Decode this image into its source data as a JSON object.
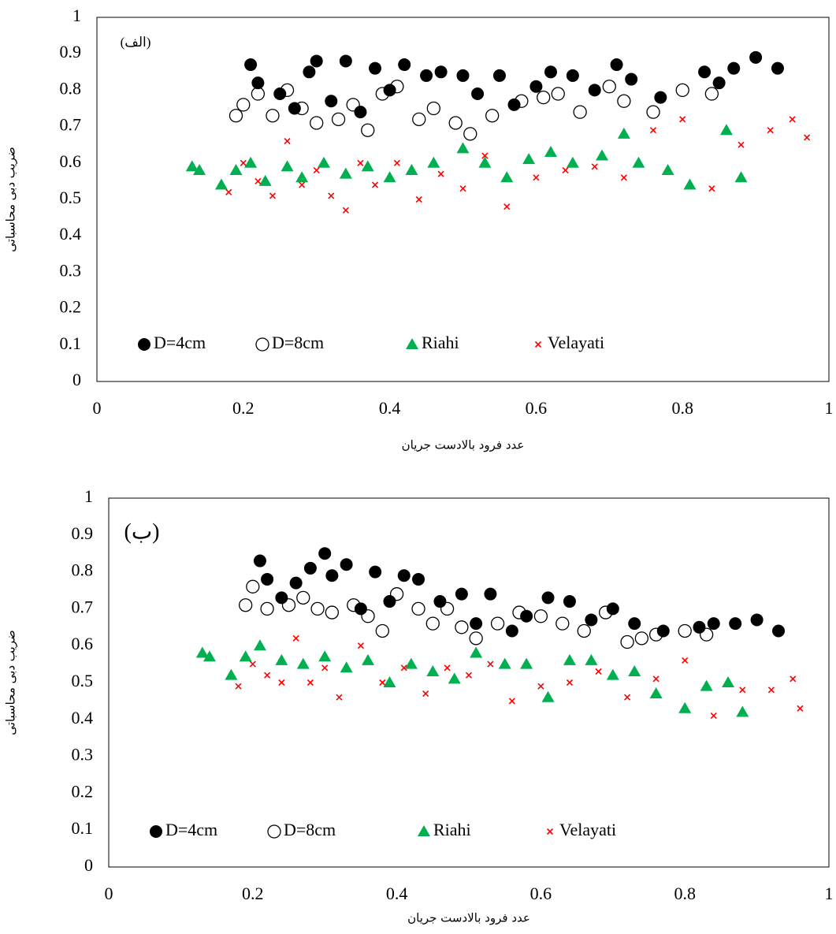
{
  "chart_data": [
    {
      "type": "scatter",
      "annotation": "(الف)",
      "xlabel": "عدد فرود بالادست جریان",
      "ylabel": "ضریب دبی محاسباتی",
      "xlim": [
        0,
        1
      ],
      "ylim": [
        0,
        1
      ],
      "xticks": [
        0,
        0.2,
        0.4,
        0.6,
        0.8,
        1
      ],
      "yticks": [
        0,
        0.1,
        0.2,
        0.3,
        0.4,
        0.5,
        0.6,
        0.7,
        0.8,
        0.9,
        1
      ],
      "series": [
        {
          "name": "D=4cm",
          "color": "#000000",
          "marker": "circle",
          "x": [
            0.21,
            0.22,
            0.25,
            0.27,
            0.29,
            0.3,
            0.32,
            0.34,
            0.36,
            0.38,
            0.4,
            0.42,
            0.45,
            0.47,
            0.5,
            0.52,
            0.55,
            0.57,
            0.6,
            0.62,
            0.65,
            0.68,
            0.71,
            0.73,
            0.77,
            0.83,
            0.85,
            0.87,
            0.9,
            0.93
          ],
          "y": [
            0.87,
            0.82,
            0.79,
            0.75,
            0.85,
            0.88,
            0.77,
            0.88,
            0.74,
            0.86,
            0.8,
            0.87,
            0.84,
            0.85,
            0.84,
            0.79,
            0.84,
            0.76,
            0.81,
            0.85,
            0.84,
            0.8,
            0.87,
            0.83,
            0.78,
            0.85,
            0.82,
            0.86,
            0.89,
            0.86
          ]
        },
        {
          "name": "D=8cm",
          "color": "#000000",
          "marker": "open-circle",
          "x": [
            0.19,
            0.2,
            0.22,
            0.24,
            0.26,
            0.28,
            0.3,
            0.33,
            0.35,
            0.37,
            0.39,
            0.41,
            0.44,
            0.46,
            0.49,
            0.51,
            0.54,
            0.58,
            0.61,
            0.63,
            0.66,
            0.7,
            0.72,
            0.76,
            0.8,
            0.84
          ],
          "y": [
            0.73,
            0.76,
            0.79,
            0.73,
            0.8,
            0.75,
            0.71,
            0.72,
            0.76,
            0.69,
            0.79,
            0.81,
            0.72,
            0.75,
            0.71,
            0.68,
            0.73,
            0.77,
            0.78,
            0.79,
            0.74,
            0.81,
            0.77,
            0.74,
            0.8,
            0.79
          ]
        },
        {
          "name": "Riahi",
          "color": "#00b050",
          "marker": "triangle",
          "x": [
            0.13,
            0.14,
            0.17,
            0.19,
            0.21,
            0.23,
            0.26,
            0.28,
            0.31,
            0.34,
            0.37,
            0.4,
            0.43,
            0.46,
            0.5,
            0.53,
            0.56,
            0.59,
            0.62,
            0.65,
            0.69,
            0.72,
            0.74,
            0.78,
            0.81,
            0.86,
            0.88
          ],
          "y": [
            0.59,
            0.58,
            0.54,
            0.58,
            0.6,
            0.55,
            0.59,
            0.56,
            0.6,
            0.57,
            0.59,
            0.56,
            0.58,
            0.6,
            0.64,
            0.6,
            0.56,
            0.61,
            0.63,
            0.6,
            0.62,
            0.68,
            0.6,
            0.58,
            0.54,
            0.69,
            0.56
          ]
        },
        {
          "name": "Velayati",
          "color": "#ff0000",
          "marker": "x",
          "x": [
            0.18,
            0.2,
            0.22,
            0.24,
            0.26,
            0.28,
            0.3,
            0.32,
            0.34,
            0.36,
            0.38,
            0.41,
            0.44,
            0.47,
            0.5,
            0.53,
            0.56,
            0.6,
            0.64,
            0.68,
            0.72,
            0.76,
            0.8,
            0.84,
            0.88,
            0.92,
            0.95,
            0.97
          ],
          "y": [
            0.52,
            0.6,
            0.55,
            0.51,
            0.66,
            0.54,
            0.58,
            0.51,
            0.47,
            0.6,
            0.54,
            0.6,
            0.5,
            0.57,
            0.53,
            0.62,
            0.48,
            0.56,
            0.58,
            0.59,
            0.56,
            0.69,
            0.72,
            0.53,
            0.65,
            0.69,
            0.72,
            0.67
          ]
        }
      ]
    },
    {
      "type": "scatter",
      "annotation": "(ب)",
      "xlabel": "عدد فرود بالادست جریان",
      "ylabel": "ضریب دبی محاسباتی",
      "xlim": [
        0,
        1
      ],
      "ylim": [
        0,
        1
      ],
      "xticks": [
        0,
        0.2,
        0.4,
        0.6,
        0.8,
        1
      ],
      "yticks": [
        0,
        0.1,
        0.2,
        0.3,
        0.4,
        0.5,
        0.6,
        0.7,
        0.8,
        0.9,
        1
      ],
      "series": [
        {
          "name": "D=4cm",
          "color": "#000000",
          "marker": "circle",
          "x": [
            0.21,
            0.22,
            0.24,
            0.26,
            0.28,
            0.3,
            0.31,
            0.33,
            0.35,
            0.37,
            0.39,
            0.41,
            0.43,
            0.46,
            0.49,
            0.51,
            0.53,
            0.56,
            0.58,
            0.61,
            0.64,
            0.67,
            0.7,
            0.73,
            0.77,
            0.82,
            0.84,
            0.87,
            0.9,
            0.93
          ],
          "y": [
            0.83,
            0.78,
            0.73,
            0.77,
            0.81,
            0.85,
            0.79,
            0.82,
            0.7,
            0.8,
            0.72,
            0.79,
            0.78,
            0.72,
            0.74,
            0.66,
            0.74,
            0.64,
            0.68,
            0.73,
            0.72,
            0.67,
            0.7,
            0.66,
            0.64,
            0.65,
            0.66,
            0.66,
            0.67,
            0.64
          ]
        },
        {
          "name": "D=8cm",
          "color": "#000000",
          "marker": "open-circle",
          "x": [
            0.19,
            0.2,
            0.22,
            0.25,
            0.27,
            0.29,
            0.31,
            0.34,
            0.36,
            0.38,
            0.4,
            0.43,
            0.45,
            0.47,
            0.49,
            0.51,
            0.54,
            0.57,
            0.6,
            0.63,
            0.66,
            0.69,
            0.72,
            0.74,
            0.76,
            0.8,
            0.83
          ],
          "y": [
            0.71,
            0.76,
            0.7,
            0.71,
            0.73,
            0.7,
            0.69,
            0.71,
            0.68,
            0.64,
            0.74,
            0.7,
            0.66,
            0.7,
            0.65,
            0.62,
            0.66,
            0.69,
            0.68,
            0.66,
            0.64,
            0.69,
            0.61,
            0.62,
            0.63,
            0.64,
            0.63
          ]
        },
        {
          "name": "Riahi",
          "color": "#00b050",
          "marker": "triangle",
          "x": [
            0.13,
            0.14,
            0.17,
            0.19,
            0.21,
            0.24,
            0.27,
            0.3,
            0.33,
            0.36,
            0.39,
            0.42,
            0.45,
            0.48,
            0.51,
            0.55,
            0.58,
            0.61,
            0.64,
            0.67,
            0.7,
            0.73,
            0.76,
            0.8,
            0.83,
            0.86,
            0.88
          ],
          "y": [
            0.58,
            0.57,
            0.52,
            0.57,
            0.6,
            0.56,
            0.55,
            0.57,
            0.54,
            0.56,
            0.5,
            0.55,
            0.53,
            0.51,
            0.58,
            0.55,
            0.55,
            0.46,
            0.56,
            0.56,
            0.52,
            0.53,
            0.47,
            0.43,
            0.49,
            0.5,
            0.42
          ]
        },
        {
          "name": "Velayati",
          "color": "#ff0000",
          "marker": "x",
          "x": [
            0.18,
            0.2,
            0.22,
            0.24,
            0.26,
            0.28,
            0.3,
            0.32,
            0.35,
            0.38,
            0.41,
            0.44,
            0.47,
            0.5,
            0.53,
            0.56,
            0.6,
            0.64,
            0.68,
            0.72,
            0.76,
            0.8,
            0.84,
            0.88,
            0.92,
            0.95,
            0.96
          ],
          "y": [
            0.49,
            0.55,
            0.52,
            0.5,
            0.62,
            0.5,
            0.54,
            0.46,
            0.6,
            0.5,
            0.54,
            0.47,
            0.54,
            0.52,
            0.55,
            0.45,
            0.49,
            0.5,
            0.53,
            0.46,
            0.51,
            0.56,
            0.41,
            0.48,
            0.48,
            0.51,
            0.43
          ]
        }
      ]
    }
  ]
}
